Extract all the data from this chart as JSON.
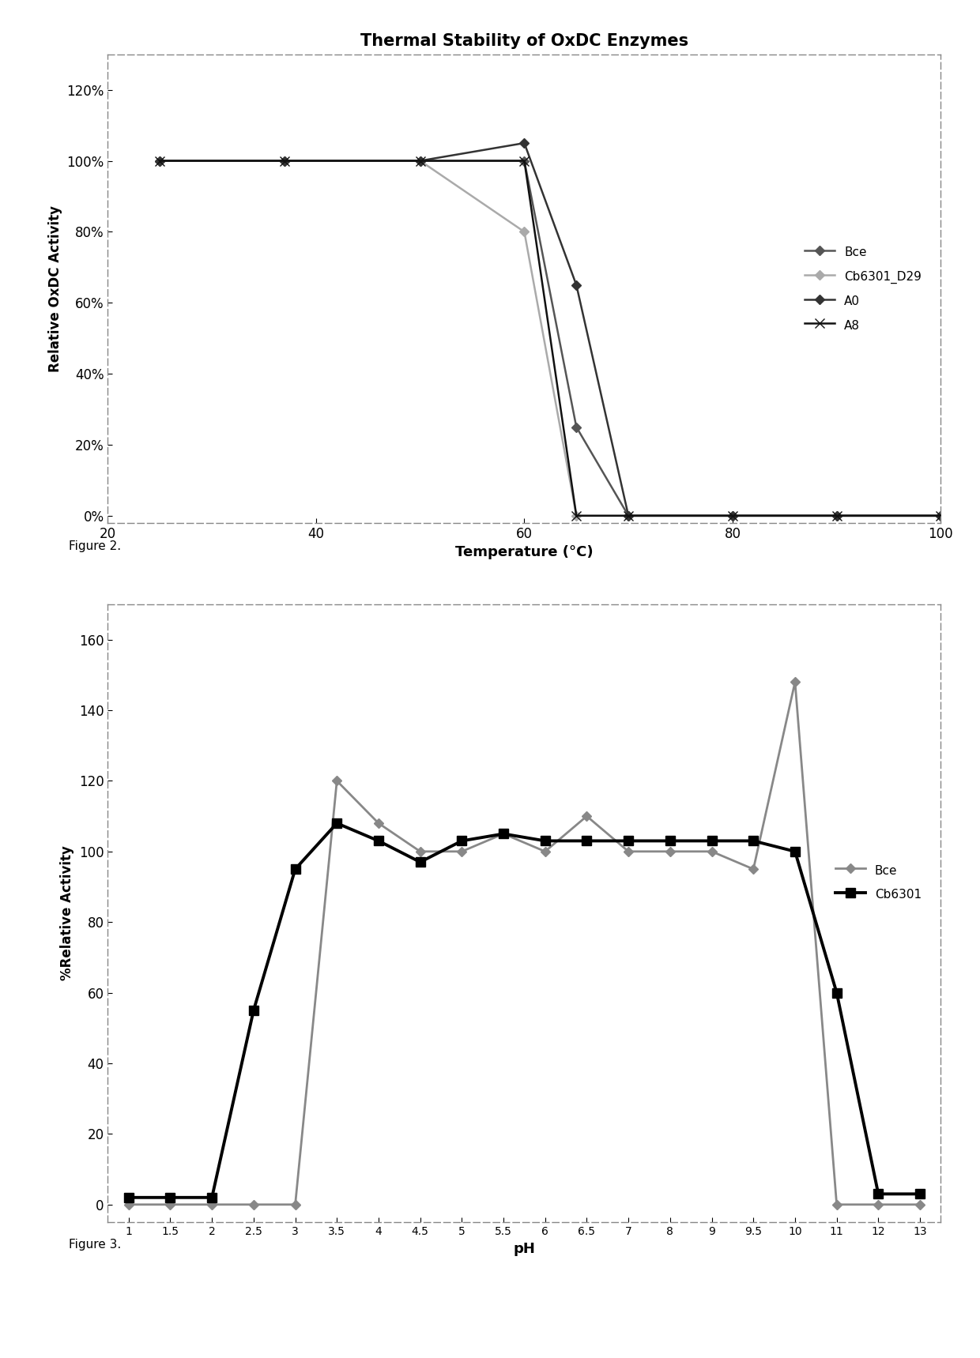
{
  "fig1": {
    "title": "Thermal Stability of OxDC Enzymes",
    "xlabel": "Temperature (°C)",
    "ylabel": "Relative OxDC Activity",
    "xlim": [
      20,
      100
    ],
    "ylim": [
      -0.02,
      1.3
    ],
    "yticks": [
      0.0,
      0.2,
      0.4,
      0.6,
      0.8,
      1.0,
      1.2
    ],
    "ytick_labels": [
      "0%",
      "20%",
      "40%",
      "60%",
      "80%",
      "100%",
      "120%"
    ],
    "xticks": [
      20,
      40,
      60,
      80,
      100
    ],
    "series": {
      "Bce": {
        "x": [
          25,
          37,
          50,
          60,
          65,
          70,
          80,
          90,
          100
        ],
        "y": [
          1.0,
          1.0,
          1.0,
          1.0,
          0.25,
          0.0,
          0.0,
          0.0,
          0.0
        ]
      },
      "Cb6301_D29": {
        "x": [
          25,
          37,
          50,
          60,
          65,
          70,
          80,
          90,
          100
        ],
        "y": [
          1.0,
          1.0,
          1.0,
          0.8,
          0.0,
          0.0,
          0.0,
          0.0,
          0.0
        ]
      },
      "A0": {
        "x": [
          25,
          37,
          50,
          60,
          65,
          70,
          80,
          90,
          100
        ],
        "y": [
          1.0,
          1.0,
          1.0,
          1.05,
          0.65,
          0.0,
          0.0,
          0.0,
          0.0
        ]
      },
      "A8": {
        "x": [
          25,
          37,
          50,
          60,
          65,
          70,
          80,
          90,
          100
        ],
        "y": [
          1.0,
          1.0,
          1.0,
          1.0,
          0.0,
          0.0,
          0.0,
          0.0,
          0.0
        ]
      }
    },
    "series_styles": {
      "Bce": {
        "color": "#555555",
        "lw": 1.8,
        "marker": "D",
        "ms": 6,
        "ls": "-"
      },
      "Cb6301_D29": {
        "color": "#aaaaaa",
        "lw": 1.8,
        "marker": "D",
        "ms": 6,
        "ls": "-"
      },
      "A0": {
        "color": "#333333",
        "lw": 1.8,
        "marker": "D",
        "ms": 6,
        "ls": "-"
      },
      "A8": {
        "color": "#111111",
        "lw": 1.8,
        "marker": "x",
        "ms": 9,
        "ls": "-"
      }
    }
  },
  "fig2": {
    "xlabel": "pH",
    "ylabel": "%Relative Activity",
    "ylim": [
      -5,
      170
    ],
    "yticks": [
      0,
      20,
      40,
      60,
      80,
      100,
      120,
      140,
      160
    ],
    "xtick_labels": [
      "1",
      "1.5",
      "2",
      "2.5",
      "3",
      "3.5",
      "4",
      "4.5",
      "5",
      "5.5",
      "6",
      "6.5",
      "7",
      "8",
      "9",
      "9.5",
      "10",
      "11",
      "12",
      "13"
    ],
    "series": {
      "Bce": {
        "y": [
          0,
          0,
          0,
          0,
          0,
          120,
          108,
          100,
          100,
          105,
          100,
          110,
          100,
          100,
          100,
          95,
          148,
          0,
          0,
          0
        ]
      },
      "Cb6301": {
        "y": [
          2,
          2,
          2,
          55,
          95,
          108,
          103,
          97,
          103,
          105,
          103,
          103,
          103,
          103,
          103,
          103,
          100,
          60,
          3,
          3
        ]
      }
    }
  },
  "figure2_label": "Figure 2.",
  "figure3_label": "Figure 3."
}
